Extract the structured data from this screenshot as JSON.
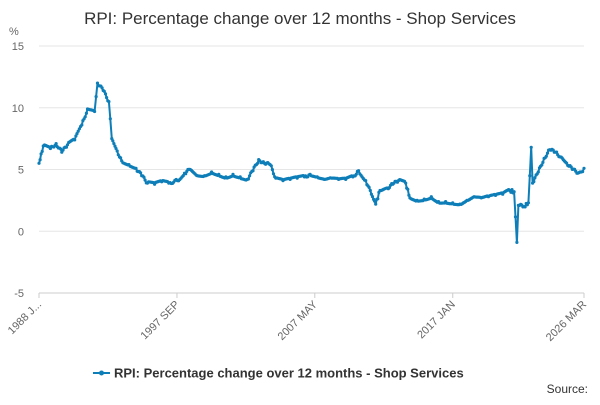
{
  "chart_data": {
    "type": "line",
    "title": "RPI: Percentage change over 12 months - Shop Services",
    "ylabel": "%",
    "xlabel": "",
    "ylim": [
      -5,
      15
    ],
    "y_ticks": [
      "15",
      "10",
      "5",
      "0",
      "-5"
    ],
    "x_tick_labels": [
      "1988 J...",
      "1997 SEP",
      "2007 MAY",
      "2017 JAN",
      "2026 MAR"
    ],
    "x_range": [
      "1988 JAN",
      "2026 MAR"
    ],
    "grid": "horizontal",
    "legend_position": "bottom",
    "source_label": "Source:",
    "colors": {
      "series": "#0e7eb8",
      "grid": "#e6e6e6",
      "axis": "#cccccc",
      "text": "#333333"
    },
    "series": [
      {
        "name": "RPI: Percentage change over 12 months - Shop Services",
        "points": [
          [
            1988.0,
            5.5
          ],
          [
            1988.3,
            6.9
          ],
          [
            1988.8,
            6.7
          ],
          [
            1989.2,
            7.1
          ],
          [
            1989.6,
            6.4
          ],
          [
            1990.0,
            7.0
          ],
          [
            1990.5,
            7.4
          ],
          [
            1991.0,
            8.6
          ],
          [
            1991.4,
            9.9
          ],
          [
            1991.9,
            9.7
          ],
          [
            1992.1,
            12.0
          ],
          [
            1992.5,
            11.4
          ],
          [
            1992.9,
            10.5
          ],
          [
            1993.1,
            7.5
          ],
          [
            1993.4,
            6.7
          ],
          [
            1993.8,
            5.7
          ],
          [
            1994.3,
            5.4
          ],
          [
            1994.8,
            5.1
          ],
          [
            1995.2,
            4.5
          ],
          [
            1995.6,
            3.9
          ],
          [
            1996.1,
            3.8
          ],
          [
            1996.6,
            4.0
          ],
          [
            1997.1,
            3.9
          ],
          [
            1997.7,
            4.1
          ],
          [
            1998.2,
            4.7
          ],
          [
            1998.6,
            5.0
          ],
          [
            1999.1,
            4.5
          ],
          [
            1999.6,
            4.5
          ],
          [
            2000.1,
            4.8
          ],
          [
            2000.6,
            4.6
          ],
          [
            2001.1,
            4.4
          ],
          [
            2001.6,
            4.6
          ],
          [
            2002.1,
            4.4
          ],
          [
            2002.6,
            4.2
          ],
          [
            2003.0,
            4.9
          ],
          [
            2003.4,
            5.8
          ],
          [
            2003.8,
            5.5
          ],
          [
            2004.2,
            5.4
          ],
          [
            2004.6,
            4.3
          ],
          [
            2005.1,
            4.1
          ],
          [
            2005.6,
            4.2
          ],
          [
            2006.1,
            4.3
          ],
          [
            2006.6,
            4.4
          ],
          [
            2007.0,
            4.6
          ],
          [
            2007.5,
            4.4
          ],
          [
            2008.0,
            4.2
          ],
          [
            2008.5,
            4.3
          ],
          [
            2009.0,
            4.2
          ],
          [
            2009.5,
            4.2
          ],
          [
            2010.0,
            4.4
          ],
          [
            2010.4,
            4.9
          ],
          [
            2010.9,
            4.1
          ],
          [
            2011.3,
            3.0
          ],
          [
            2011.6,
            2.2
          ],
          [
            2011.9,
            3.3
          ],
          [
            2012.4,
            3.5
          ],
          [
            2012.8,
            3.8
          ],
          [
            2013.2,
            4.1
          ],
          [
            2013.7,
            3.9
          ],
          [
            2014.0,
            2.7
          ],
          [
            2014.5,
            2.5
          ],
          [
            2015.0,
            2.6
          ],
          [
            2015.5,
            2.8
          ],
          [
            2016.0,
            2.4
          ],
          [
            2016.5,
            2.4
          ],
          [
            2017.0,
            2.3
          ],
          [
            2017.5,
            2.2
          ],
          [
            2018.0,
            2.5
          ],
          [
            2018.5,
            2.8
          ],
          [
            2019.0,
            2.7
          ],
          [
            2019.5,
            2.8
          ],
          [
            2020.0,
            2.9
          ],
          [
            2020.5,
            3.0
          ],
          [
            2021.0,
            3.3
          ],
          [
            2021.3,
            3.2
          ],
          [
            2021.5,
            -0.9
          ],
          [
            2021.6,
            2.1
          ],
          [
            2022.0,
            2.0
          ],
          [
            2022.3,
            2.3
          ],
          [
            2022.5,
            6.8
          ],
          [
            2022.6,
            3.9
          ],
          [
            2023.0,
            4.8
          ],
          [
            2023.4,
            5.9
          ],
          [
            2023.8,
            6.6
          ],
          [
            2024.2,
            6.4
          ],
          [
            2024.6,
            6.0
          ],
          [
            2024.9,
            5.6
          ],
          [
            2025.3,
            5.2
          ],
          [
            2025.7,
            4.7
          ],
          [
            2026.0,
            4.8
          ],
          [
            2026.2,
            5.1
          ]
        ]
      }
    ]
  }
}
